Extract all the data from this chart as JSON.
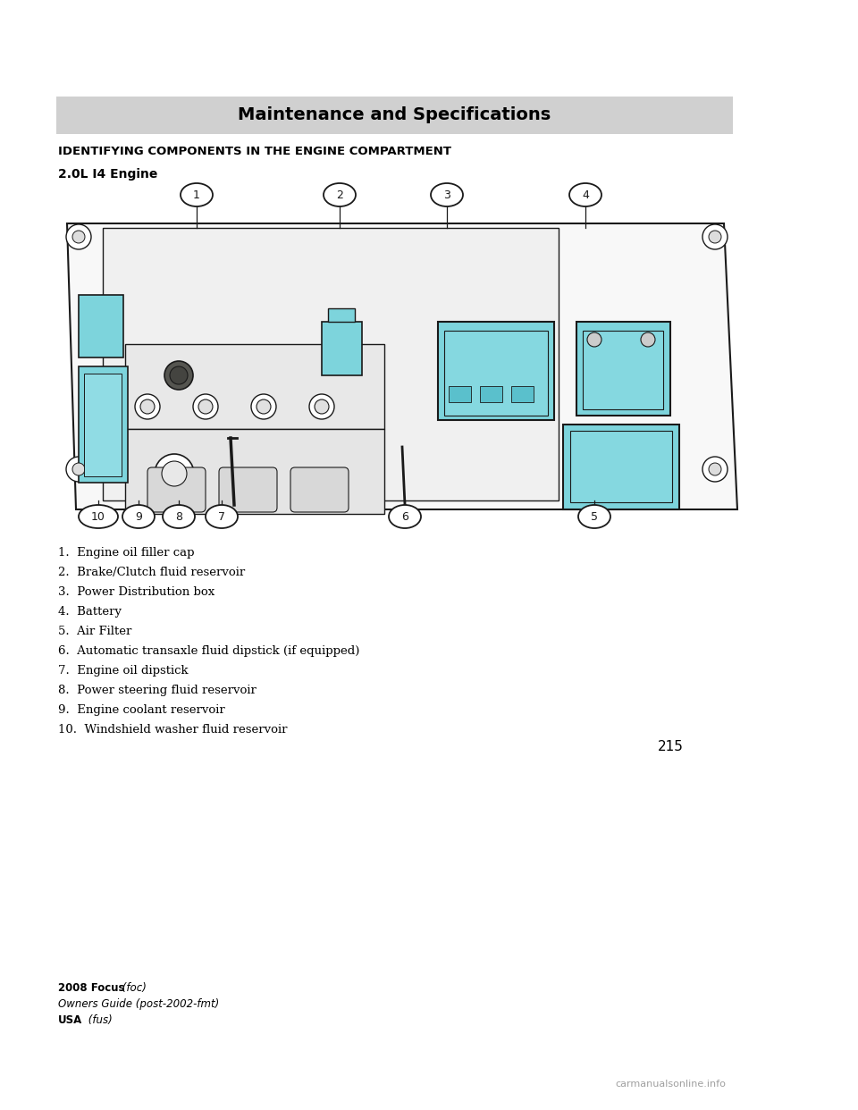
{
  "page_width": 9.6,
  "page_height": 12.42,
  "background_color": "#ffffff",
  "header_bar_color": "#d0d0d0",
  "header_text": "Maintenance and Specifications",
  "header_text_fontsize": 14,
  "section_title": "IDENTIFYING COMPONENTS IN THE ENGINE COMPARTMENT",
  "section_title_fontsize": 9.5,
  "subsection_title": "2.0L I4 Engine",
  "subsection_title_fontsize": 10,
  "items": [
    "1.  Engine oil filler cap",
    "2.  Brake/Clutch fluid reservoir",
    "3.  Power Distribution box",
    "4.  Battery",
    "5.  Air Filter",
    "6.  Automatic transaxle fluid dipstick (if equipped)",
    "7.  Engine oil dipstick",
    "8.  Power steering fluid reservoir",
    "9.  Engine coolant reservoir",
    "10.  Windshield washer fluid reservoir"
  ],
  "items_fontsize": 9.5,
  "page_number": "215",
  "footer_bold1": "2008 Focus",
  "footer_italic1": " (foc)",
  "footer_italic2": "Owners Guide (post-2002-fmt)",
  "footer_bold3": "USA",
  "footer_italic3": " (fus)",
  "footer_fontsize": 8.5,
  "watermark": "carmanualsonline.info",
  "watermark_fontsize": 8,
  "cyan_color": "#7dd4dc",
  "dark_line": "#1a1a1a",
  "engine_bg": "#f5f5f5"
}
